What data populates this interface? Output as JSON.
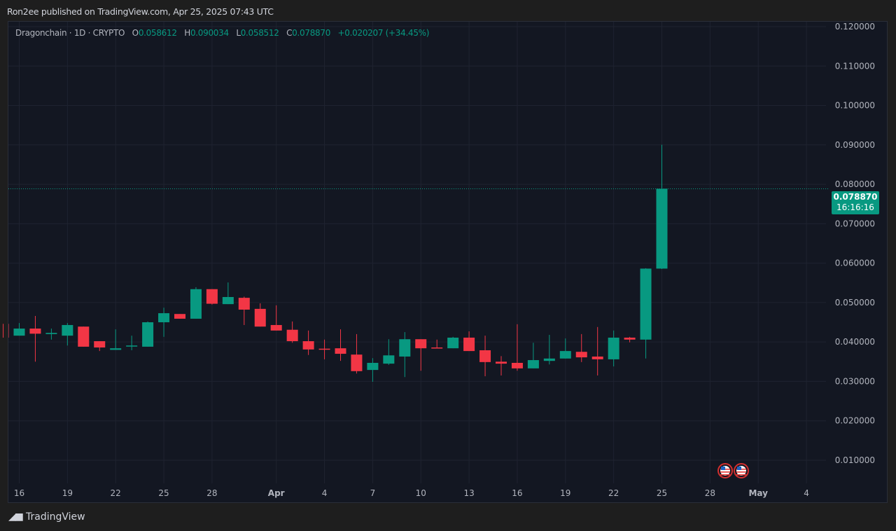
{
  "header": {
    "published": "Ron2ee published on TradingView.com, Apr 25, 2025 07:43 UTC"
  },
  "legend": {
    "symbol": "Dragonchain · 1D · CRYPTO",
    "o_label": "O",
    "o": "0.058612",
    "h_label": "H",
    "h": "0.090034",
    "l_label": "L",
    "l": "0.058512",
    "c_label": "C",
    "c": "0.078870",
    "change": "+0.020207 (+34.45%)"
  },
  "last_price": {
    "price": "0.078870",
    "countdown": "16:16:16"
  },
  "footer": {
    "brand": "TradingView",
    "logo_text": "TV"
  },
  "colors": {
    "up": "#089981",
    "down": "#f23645",
    "background": "#131722",
    "grid": "#1f2330",
    "text": "#b2b5be"
  },
  "icons": [
    "us-flag-event-icon",
    "us-flag-event-icon"
  ],
  "chart_data": {
    "type": "candlestick",
    "title": "",
    "ylim": [
      0.005,
      0.12
    ],
    "y_ticks": [
      "0.120000",
      "0.110000",
      "0.100000",
      "0.090000",
      "0.080000",
      "0.070000",
      "0.060000",
      "0.050000",
      "0.040000",
      "0.030000",
      "0.020000",
      "0.010000"
    ],
    "x_ticks": [
      {
        "label": "16",
        "date": "2025-03-16"
      },
      {
        "label": "19",
        "date": "2025-03-19"
      },
      {
        "label": "22",
        "date": "2025-03-22"
      },
      {
        "label": "25",
        "date": "2025-03-25"
      },
      {
        "label": "28",
        "date": "2025-03-28"
      },
      {
        "label": "Apr",
        "date": "2025-04-01"
      },
      {
        "label": "4",
        "date": "2025-04-04"
      },
      {
        "label": "7",
        "date": "2025-04-07"
      },
      {
        "label": "10",
        "date": "2025-04-10"
      },
      {
        "label": "13",
        "date": "2025-04-13"
      },
      {
        "label": "16",
        "date": "2025-04-16"
      },
      {
        "label": "19",
        "date": "2025-04-19"
      },
      {
        "label": "22",
        "date": "2025-04-22"
      },
      {
        "label": "25",
        "date": "2025-04-25"
      },
      {
        "label": "28",
        "date": "2025-04-28"
      },
      {
        "label": "May",
        "date": "2025-05-01"
      },
      {
        "label": "4",
        "date": "2025-05-04"
      }
    ],
    "candles": [
      {
        "date": "2025-03-15",
        "o": 0.0446,
        "h": 0.0446,
        "l": 0.0411,
        "c": 0.0411
      },
      {
        "date": "2025-03-16",
        "o": 0.0416,
        "h": 0.0448,
        "l": 0.0416,
        "c": 0.0434
      },
      {
        "date": "2025-03-17",
        "o": 0.0434,
        "h": 0.0466,
        "l": 0.035,
        "c": 0.0421
      },
      {
        "date": "2025-03-18",
        "o": 0.042,
        "h": 0.0434,
        "l": 0.0406,
        "c": 0.0423
      },
      {
        "date": "2025-03-19",
        "o": 0.0416,
        "h": 0.0448,
        "l": 0.0391,
        "c": 0.0443
      },
      {
        "date": "2025-03-20",
        "o": 0.0439,
        "h": 0.0439,
        "l": 0.0388,
        "c": 0.0388
      },
      {
        "date": "2025-03-21",
        "o": 0.0402,
        "h": 0.0402,
        "l": 0.0377,
        "c": 0.0386
      },
      {
        "date": "2025-03-22",
        "o": 0.038,
        "h": 0.0432,
        "l": 0.038,
        "c": 0.0384
      },
      {
        "date": "2025-03-23",
        "o": 0.0389,
        "h": 0.0416,
        "l": 0.0379,
        "c": 0.0391
      },
      {
        "date": "2025-03-24",
        "o": 0.0388,
        "h": 0.0452,
        "l": 0.0388,
        "c": 0.045
      },
      {
        "date": "2025-03-25",
        "o": 0.045,
        "h": 0.0487,
        "l": 0.0413,
        "c": 0.0473
      },
      {
        "date": "2025-03-26",
        "o": 0.0471,
        "h": 0.0471,
        "l": 0.0459,
        "c": 0.0459
      },
      {
        "date": "2025-03-27",
        "o": 0.0459,
        "h": 0.0539,
        "l": 0.0459,
        "c": 0.0534
      },
      {
        "date": "2025-03-28",
        "o": 0.0534,
        "h": 0.0534,
        "l": 0.0495,
        "c": 0.0497
      },
      {
        "date": "2025-03-29",
        "o": 0.0496,
        "h": 0.0551,
        "l": 0.0496,
        "c": 0.0514
      },
      {
        "date": "2025-03-30",
        "o": 0.0512,
        "h": 0.0515,
        "l": 0.0443,
        "c": 0.0482
      },
      {
        "date": "2025-03-31",
        "o": 0.0484,
        "h": 0.0498,
        "l": 0.0439,
        "c": 0.0439
      },
      {
        "date": "2025-04-01",
        "o": 0.0443,
        "h": 0.0493,
        "l": 0.0429,
        "c": 0.0429
      },
      {
        "date": "2025-04-02",
        "o": 0.0431,
        "h": 0.0452,
        "l": 0.0398,
        "c": 0.0402
      },
      {
        "date": "2025-04-03",
        "o": 0.0402,
        "h": 0.0429,
        "l": 0.0367,
        "c": 0.0381
      },
      {
        "date": "2025-04-04",
        "o": 0.0383,
        "h": 0.0406,
        "l": 0.0356,
        "c": 0.0381
      },
      {
        "date": "2025-04-05",
        "o": 0.0384,
        "h": 0.0432,
        "l": 0.0352,
        "c": 0.037
      },
      {
        "date": "2025-04-06",
        "o": 0.0368,
        "h": 0.042,
        "l": 0.032,
        "c": 0.0326
      },
      {
        "date": "2025-04-07",
        "o": 0.0329,
        "h": 0.0359,
        "l": 0.0299,
        "c": 0.0347
      },
      {
        "date": "2025-04-08",
        "o": 0.0345,
        "h": 0.0407,
        "l": 0.0342,
        "c": 0.0366
      },
      {
        "date": "2025-04-09",
        "o": 0.0363,
        "h": 0.0425,
        "l": 0.0311,
        "c": 0.0407
      },
      {
        "date": "2025-04-10",
        "o": 0.0407,
        "h": 0.0407,
        "l": 0.0327,
        "c": 0.0384
      },
      {
        "date": "2025-04-11",
        "o": 0.0386,
        "h": 0.0406,
        "l": 0.0384,
        "c": 0.0384
      },
      {
        "date": "2025-04-12",
        "o": 0.0384,
        "h": 0.0413,
        "l": 0.0384,
        "c": 0.0411
      },
      {
        "date": "2025-04-13",
        "o": 0.0411,
        "h": 0.0427,
        "l": 0.0377,
        "c": 0.0377
      },
      {
        "date": "2025-04-14",
        "o": 0.0379,
        "h": 0.0416,
        "l": 0.0313,
        "c": 0.0349
      },
      {
        "date": "2025-04-15",
        "o": 0.035,
        "h": 0.0364,
        "l": 0.0315,
        "c": 0.0345
      },
      {
        "date": "2025-04-16",
        "o": 0.0347,
        "h": 0.0445,
        "l": 0.0327,
        "c": 0.0333
      },
      {
        "date": "2025-04-17",
        "o": 0.0333,
        "h": 0.0398,
        "l": 0.0333,
        "c": 0.0354
      },
      {
        "date": "2025-04-18",
        "o": 0.0352,
        "h": 0.0418,
        "l": 0.0343,
        "c": 0.0358
      },
      {
        "date": "2025-04-19",
        "o": 0.0358,
        "h": 0.0409,
        "l": 0.0358,
        "c": 0.0377
      },
      {
        "date": "2025-04-20",
        "o": 0.0375,
        "h": 0.042,
        "l": 0.0349,
        "c": 0.0361
      },
      {
        "date": "2025-04-21",
        "o": 0.0363,
        "h": 0.0438,
        "l": 0.0315,
        "c": 0.0356
      },
      {
        "date": "2025-04-22",
        "o": 0.0356,
        "h": 0.0429,
        "l": 0.0338,
        "c": 0.0411
      },
      {
        "date": "2025-04-23",
        "o": 0.0411,
        "h": 0.0413,
        "l": 0.0399,
        "c": 0.0406
      },
      {
        "date": "2025-04-24",
        "o": 0.0406,
        "h": 0.0587,
        "l": 0.0358,
        "c": 0.058612
      },
      {
        "date": "2025-04-25",
        "o": 0.058612,
        "h": 0.090034,
        "l": 0.058512,
        "c": 0.07887
      }
    ]
  }
}
